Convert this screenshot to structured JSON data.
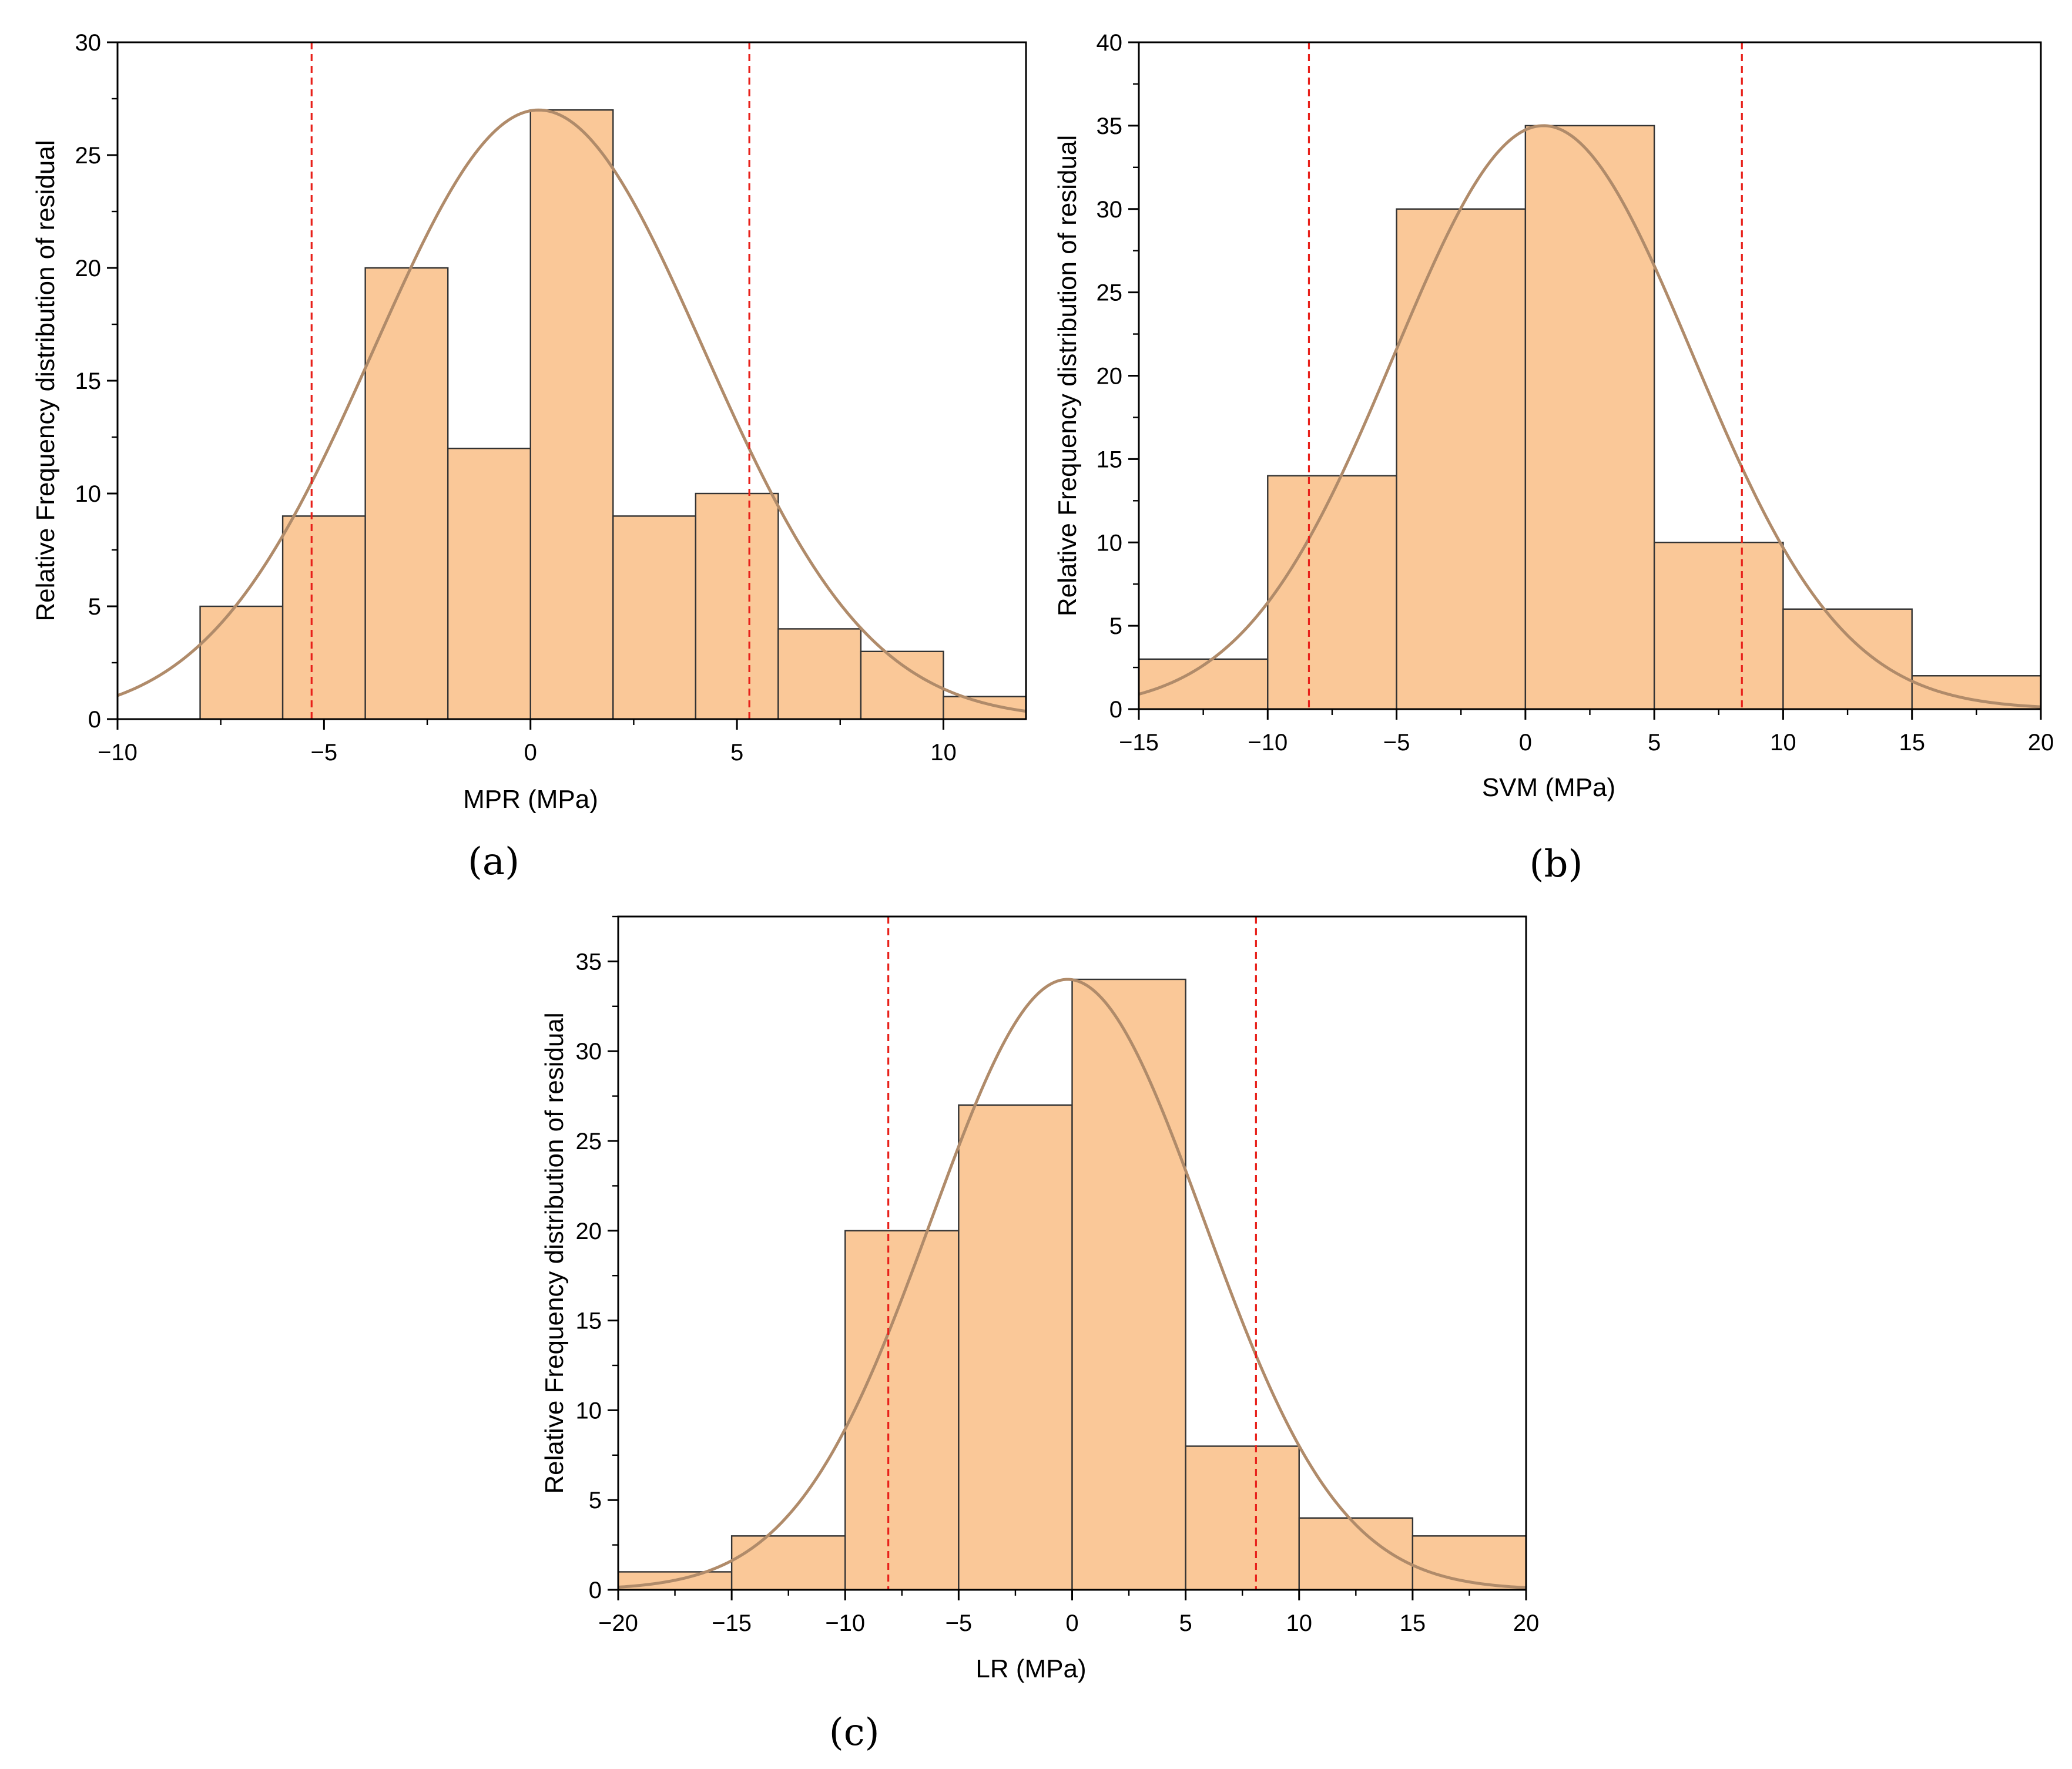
{
  "chart_data": [
    {
      "type": "bar",
      "panel_label": "(a)",
      "xlabel": "MPR (MPa)",
      "ylabel": "Relative Frequency distribution of residual",
      "xlim": [
        -10,
        12
      ],
      "ylim": [
        0,
        30
      ],
      "xticks": [
        -10,
        -5,
        0,
        5,
        10
      ],
      "yticks": [
        0,
        5,
        10,
        15,
        20,
        25,
        30
      ],
      "xminor": 2.5,
      "yminor": 2.5,
      "bins": [
        {
          "x0": -8,
          "x1": -6,
          "value": 5
        },
        {
          "x0": -6,
          "x1": -4,
          "value": 9
        },
        {
          "x0": -4,
          "x1": -2,
          "value": 20
        },
        {
          "x0": -2,
          "x1": 0,
          "value": 12
        },
        {
          "x0": 0,
          "x1": 2,
          "value": 27
        },
        {
          "x0": 2,
          "x1": 4,
          "value": 9
        },
        {
          "x0": 4,
          "x1": 6,
          "value": 10
        },
        {
          "x0": 6,
          "x1": 8,
          "value": 4
        },
        {
          "x0": 8,
          "x1": 10,
          "value": 3
        },
        {
          "x0": 10,
          "x1": 12,
          "value": 1
        }
      ],
      "normal_curve": {
        "mean": 0.2,
        "sd": 4.0,
        "peak": 27
      },
      "ref_lines": [
        -5.3,
        5.3
      ]
    },
    {
      "type": "bar",
      "panel_label": "(b)",
      "xlabel": "SVM (MPa)",
      "ylabel": "Relative Frequency distribution of residual",
      "xlim": [
        -15,
        20
      ],
      "ylim": [
        0,
        40
      ],
      "xticks": [
        -15,
        -10,
        -5,
        0,
        5,
        10,
        15,
        20
      ],
      "yticks": [
        0,
        5,
        10,
        15,
        20,
        25,
        30,
        35,
        40
      ],
      "xminor": 2.5,
      "yminor": 2.5,
      "bins": [
        {
          "x0": -15,
          "x1": -10,
          "value": 3
        },
        {
          "x0": -10,
          "x1": -5,
          "value": 14
        },
        {
          "x0": -5,
          "x1": 0,
          "value": 30
        },
        {
          "x0": 0,
          "x1": 5,
          "value": 35
        },
        {
          "x0": 5,
          "x1": 10,
          "value": 10
        },
        {
          "x0": 10,
          "x1": 15,
          "value": 6
        },
        {
          "x0": 15,
          "x1": 20,
          "value": 2
        }
      ],
      "normal_curve": {
        "mean": 0.7,
        "sd": 5.8,
        "peak": 35
      },
      "ref_lines": [
        -8.4,
        8.4
      ]
    },
    {
      "type": "bar",
      "panel_label": "(c)",
      "xlabel": "LR (MPa)",
      "ylabel": "Relative Frequency distribution of residual",
      "xlim": [
        -20,
        20
      ],
      "ylim": [
        0,
        37.5
      ],
      "xticks": [
        -20,
        -15,
        -10,
        -5,
        0,
        5,
        10,
        15,
        20
      ],
      "yticks": [
        0,
        5,
        10,
        15,
        20,
        25,
        30,
        35
      ],
      "xminor": 2.5,
      "yminor": 2.5,
      "bins": [
        {
          "x0": -20,
          "x1": -15,
          "value": 1
        },
        {
          "x0": -15,
          "x1": -10,
          "value": 3
        },
        {
          "x0": -10,
          "x1": -5,
          "value": 20
        },
        {
          "x0": -5,
          "x1": 0,
          "value": 27
        },
        {
          "x0": 0,
          "x1": 5,
          "value": 34
        },
        {
          "x0": 5,
          "x1": 10,
          "value": 8
        },
        {
          "x0": 10,
          "x1": 15,
          "value": 4
        },
        {
          "x0": 15,
          "x1": 20,
          "value": 3
        }
      ],
      "normal_curve": {
        "mean": -0.2,
        "sd": 6.0,
        "peak": 34
      },
      "ref_lines": [
        -8.1,
        8.1
      ]
    }
  ]
}
